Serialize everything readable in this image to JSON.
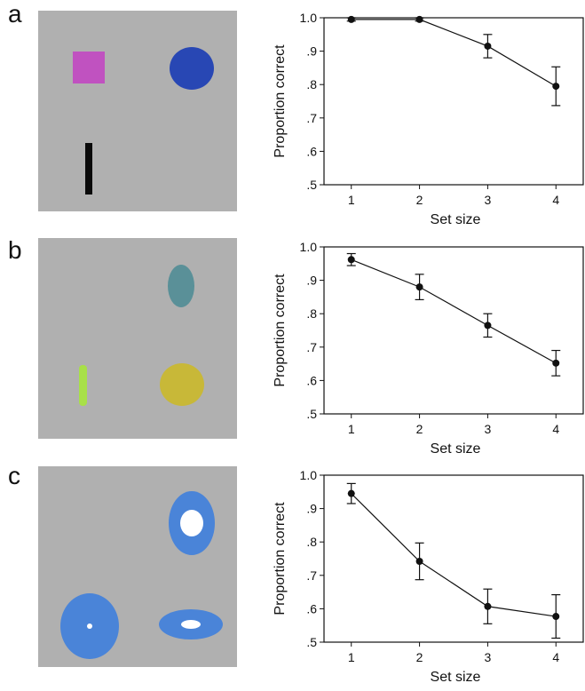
{
  "panels": [
    {
      "letter": "a",
      "stimulus": {
        "background": "#b0b0b0",
        "shapes": [
          {
            "name": "square",
            "color": "#c052c0"
          },
          {
            "name": "circle",
            "color": "#2847b4"
          },
          {
            "name": "bar",
            "color": "#0a0a0a"
          }
        ]
      },
      "chart_data": {
        "type": "line",
        "x": [
          1,
          2,
          3,
          4
        ],
        "series": [
          {
            "values": [
              0.995,
              0.995,
              0.915,
              0.795
            ],
            "error": [
              0.005,
              0.005,
              0.035,
              0.058
            ]
          }
        ],
        "xlabel": "Set size",
        "ylabel": "Proportion correct",
        "xticks": [
          "1",
          "2",
          "3",
          "4"
        ],
        "yticks": [
          ".5",
          ".6",
          ".7",
          ".8",
          ".9",
          "1.0"
        ],
        "ylim": [
          0.5,
          1.0
        ],
        "xlim": [
          0.6,
          4.4
        ],
        "grid": false
      }
    },
    {
      "letter": "b",
      "stimulus": {
        "background": "#b0b0b0",
        "shapes": [
          {
            "name": "teal-ellipse",
            "color": "#5a9098"
          },
          {
            "name": "green-bar",
            "color": "#a8e048"
          },
          {
            "name": "yellow-circle",
            "color": "#c8b838"
          }
        ]
      },
      "chart_data": {
        "type": "line",
        "x": [
          1,
          2,
          3,
          4
        ],
        "series": [
          {
            "values": [
              0.962,
              0.88,
              0.765,
              0.652
            ],
            "error": [
              0.018,
              0.038,
              0.035,
              0.038
            ]
          }
        ],
        "xlabel": "Set size",
        "ylabel": "Proportion correct",
        "xticks": [
          "1",
          "2",
          "3",
          "4"
        ],
        "yticks": [
          ".5",
          ".6",
          ".7",
          ".8",
          ".9",
          "1.0"
        ],
        "ylim": [
          0.5,
          1.0
        ],
        "xlim": [
          0.6,
          4.4
        ],
        "grid": false
      }
    },
    {
      "letter": "c",
      "stimulus": {
        "background": "#b0b0b0",
        "shapes": [
          {
            "name": "ring-large-hole",
            "color": "#4a84d8",
            "hole": "#ffffff"
          },
          {
            "name": "ring-small-hole",
            "color": "#4a84d8",
            "hole": "#ffffff"
          },
          {
            "name": "flat-ring",
            "color": "#4a84d8",
            "hole": "#ffffff"
          }
        ]
      },
      "chart_data": {
        "type": "line",
        "x": [
          1,
          2,
          3,
          4
        ],
        "series": [
          {
            "values": [
              0.945,
              0.742,
              0.607,
              0.577
            ],
            "error": [
              0.03,
              0.055,
              0.052,
              0.065
            ]
          }
        ],
        "xlabel": "Set size",
        "ylabel": "Proportion correct",
        "xticks": [
          "1",
          "2",
          "3",
          "4"
        ],
        "yticks": [
          ".5",
          ".6",
          ".7",
          ".8",
          ".9",
          "1.0"
        ],
        "ylim": [
          0.5,
          1.0
        ],
        "xlim": [
          0.6,
          4.4
        ],
        "grid": false
      }
    }
  ]
}
